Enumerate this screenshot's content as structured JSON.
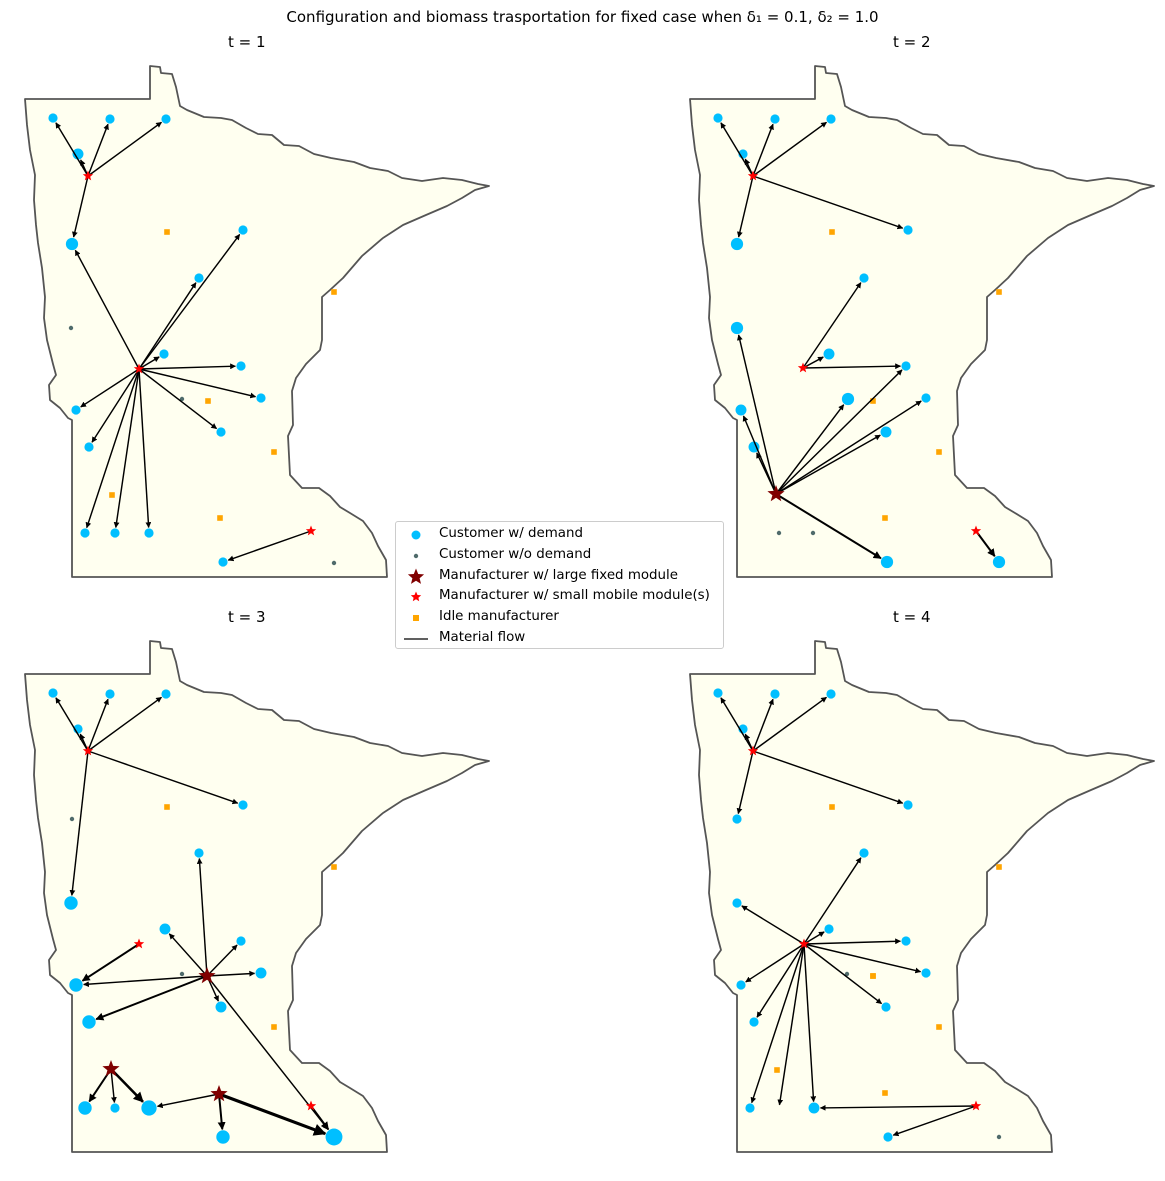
{
  "figure": {
    "title": "Configuration and biomass trasportation for fixed case when δ₁ = 0.1, δ₂ = 1.0"
  },
  "legend": {
    "items": [
      {
        "label": "Customer w/ demand",
        "symbol": "circle",
        "color": "#00bfff"
      },
      {
        "label": "Customer w/o demand",
        "symbol": "small-dot",
        "color": "#4f6b6b"
      },
      {
        "label": "Manufacturer w/ large fixed module",
        "symbol": "large-star",
        "color": "#800000"
      },
      {
        "label": "Manufacturer w/ small mobile module(s)",
        "symbol": "small-star",
        "color": "#ff0000"
      },
      {
        "label": "Idle manufacturer",
        "symbol": "square",
        "color": "#ffa500"
      },
      {
        "label": "Material flow",
        "symbol": "line",
        "color": "#000000"
      }
    ]
  },
  "colors": {
    "state_fill": "#fffff0",
    "state_border": "#555555",
    "customer": "#00bfff",
    "customer_none": "#4f6b6b",
    "large_module": "#800000",
    "small_module": "#ff0000",
    "idle": "#ffa500",
    "flow": "#000000"
  },
  "chart_data": [
    {
      "type": "network-map",
      "title": "t = 1",
      "nodes": [
        {
          "id": "C1",
          "kind": "customer",
          "demand": 1
        },
        {
          "id": "C2",
          "kind": "customer",
          "demand": 1
        },
        {
          "id": "C3",
          "kind": "customer",
          "demand": 1
        },
        {
          "id": "C4",
          "kind": "customer",
          "demand": 2
        },
        {
          "id": "C5",
          "kind": "customer",
          "demand": 3
        },
        {
          "id": "C6",
          "kind": "customer",
          "demand": 1
        },
        {
          "id": "C7",
          "kind": "customer",
          "demand": 1
        },
        {
          "id": "C8",
          "kind": "customer",
          "demand": 0
        },
        {
          "id": "C9",
          "kind": "customer",
          "demand": 1
        },
        {
          "id": "C10",
          "kind": "customer",
          "demand": 1
        },
        {
          "id": "C11",
          "kind": "customer",
          "demand": 0
        },
        {
          "id": "C12",
          "kind": "customer",
          "demand": 1
        },
        {
          "id": "C13",
          "kind": "customer",
          "demand": 1
        },
        {
          "id": "C14",
          "kind": "customer",
          "demand": 1
        },
        {
          "id": "C15",
          "kind": "customer",
          "demand": 1
        },
        {
          "id": "C16",
          "kind": "customer",
          "demand": 1
        },
        {
          "id": "C17",
          "kind": "customer",
          "demand": 1
        },
        {
          "id": "C18",
          "kind": "customer",
          "demand": 1
        },
        {
          "id": "C19",
          "kind": "customer",
          "demand": 1
        },
        {
          "id": "C20",
          "kind": "customer",
          "demand": 0
        },
        {
          "id": "M1",
          "kind": "small"
        },
        {
          "id": "M2",
          "kind": "small"
        },
        {
          "id": "M3",
          "kind": "small"
        },
        {
          "id": "I1",
          "kind": "idle"
        },
        {
          "id": "I2",
          "kind": "idle"
        },
        {
          "id": "I3",
          "kind": "idle"
        },
        {
          "id": "I4",
          "kind": "idle"
        },
        {
          "id": "I5",
          "kind": "idle"
        },
        {
          "id": "I6",
          "kind": "idle"
        }
      ],
      "flows": [
        {
          "from": "M1",
          "to": "C1",
          "amount": 1
        },
        {
          "from": "M1",
          "to": "C2",
          "amount": 1
        },
        {
          "from": "M1",
          "to": "C3",
          "amount": 1
        },
        {
          "from": "M1",
          "to": "C4",
          "amount": 1
        },
        {
          "from": "M1",
          "to": "C5",
          "amount": 1
        },
        {
          "from": "M2",
          "to": "C5",
          "amount": 1
        },
        {
          "from": "M2",
          "to": "C6",
          "amount": 1
        },
        {
          "from": "M2",
          "to": "C7",
          "amount": 1
        },
        {
          "from": "M2",
          "to": "C9",
          "amount": 1
        },
        {
          "from": "M2",
          "to": "C10",
          "amount": 1
        },
        {
          "from": "M2",
          "to": "C12",
          "amount": 1
        },
        {
          "from": "M2",
          "to": "C13",
          "amount": 1
        },
        {
          "from": "M2",
          "to": "C14",
          "amount": 1
        },
        {
          "from": "M2",
          "to": "C15",
          "amount": 1
        },
        {
          "from": "M2",
          "to": "C16",
          "amount": 1
        },
        {
          "from": "M2",
          "to": "C17",
          "amount": 1
        },
        {
          "from": "M2",
          "to": "C18",
          "amount": 1
        },
        {
          "from": "M3",
          "to": "C19",
          "amount": 1
        }
      ]
    },
    {
      "type": "network-map",
      "title": "t = 2",
      "nodes": [
        {
          "id": "C1",
          "kind": "customer",
          "demand": 1
        },
        {
          "id": "C2",
          "kind": "customer",
          "demand": 1
        },
        {
          "id": "C3",
          "kind": "customer",
          "demand": 1
        },
        {
          "id": "C4",
          "kind": "customer",
          "demand": 1
        },
        {
          "id": "C5",
          "kind": "customer",
          "demand": 3
        },
        {
          "id": "C6",
          "kind": "customer",
          "demand": 1
        },
        {
          "id": "C7",
          "kind": "customer",
          "demand": 1
        },
        {
          "id": "C8",
          "kind": "customer",
          "demand": 3
        },
        {
          "id": "C9",
          "kind": "customer",
          "demand": 2
        },
        {
          "id": "C10",
          "kind": "customer",
          "demand": 1
        },
        {
          "id": "C11",
          "kind": "customer",
          "demand": 2
        },
        {
          "id": "C12",
          "kind": "customer",
          "demand": 1
        },
        {
          "id": "C13",
          "kind": "customer",
          "demand": 3
        },
        {
          "id": "C14",
          "kind": "customer",
          "demand": 2
        },
        {
          "id": "C15",
          "kind": "customer",
          "demand": 2
        },
        {
          "id": "C16",
          "kind": "customer",
          "demand": 0
        },
        {
          "id": "C17",
          "kind": "customer",
          "demand": 0
        },
        {
          "id": "C18",
          "kind": "customer",
          "demand": 3
        },
        {
          "id": "C19",
          "kind": "customer",
          "demand": 3
        },
        {
          "id": "M1",
          "kind": "small"
        },
        {
          "id": "M2",
          "kind": "small"
        },
        {
          "id": "M3",
          "kind": "large"
        },
        {
          "id": "M4",
          "kind": "small"
        },
        {
          "id": "I1",
          "kind": "idle"
        },
        {
          "id": "I2",
          "kind": "idle"
        },
        {
          "id": "I3",
          "kind": "idle"
        },
        {
          "id": "I4",
          "kind": "idle"
        },
        {
          "id": "I5",
          "kind": "idle"
        }
      ],
      "flows": [
        {
          "from": "M1",
          "to": "C1",
          "amount": 1
        },
        {
          "from": "M1",
          "to": "C2",
          "amount": 1
        },
        {
          "from": "M1",
          "to": "C3",
          "amount": 1
        },
        {
          "from": "M1",
          "to": "C4",
          "amount": 1
        },
        {
          "from": "M1",
          "to": "C5",
          "amount": 1
        },
        {
          "from": "M1",
          "to": "C6",
          "amount": 1
        },
        {
          "from": "M2",
          "to": "C7",
          "amount": 1
        },
        {
          "from": "M2",
          "to": "C9",
          "amount": 1
        },
        {
          "from": "M2",
          "to": "C10",
          "amount": 1
        },
        {
          "from": "M3",
          "to": "C8",
          "amount": 1
        },
        {
          "from": "M3",
          "to": "C11",
          "amount": 1
        },
        {
          "from": "M3",
          "to": "C12",
          "amount": 1
        },
        {
          "from": "M3",
          "to": "C13",
          "amount": 1
        },
        {
          "from": "M3",
          "to": "C14",
          "amount": 1
        },
        {
          "from": "M3",
          "to": "C15",
          "amount": 1
        },
        {
          "from": "M3",
          "to": "C18",
          "amount": 2
        },
        {
          "from": "M3",
          "to": "C10",
          "amount": 1
        },
        {
          "from": "M4",
          "to": "C19",
          "amount": 2
        }
      ]
    },
    {
      "type": "network-map",
      "title": "t = 3",
      "nodes": [
        {
          "id": "C1",
          "kind": "customer",
          "demand": 1
        },
        {
          "id": "C2",
          "kind": "customer",
          "demand": 1
        },
        {
          "id": "C3",
          "kind": "customer",
          "demand": 1
        },
        {
          "id": "C4",
          "kind": "customer",
          "demand": 1
        },
        {
          "id": "C5",
          "kind": "customer",
          "demand": 1
        },
        {
          "id": "C6",
          "kind": "customer",
          "demand": 0
        },
        {
          "id": "C7",
          "kind": "customer",
          "demand": 1
        },
        {
          "id": "C8",
          "kind": "customer",
          "demand": 4
        },
        {
          "id": "C9",
          "kind": "customer",
          "demand": 2
        },
        {
          "id": "C10",
          "kind": "customer",
          "demand": 1
        },
        {
          "id": "C11",
          "kind": "customer",
          "demand": 4
        },
        {
          "id": "C12",
          "kind": "customer",
          "demand": 0
        },
        {
          "id": "C13",
          "kind": "customer",
          "demand": 2
        },
        {
          "id": "C14",
          "kind": "customer",
          "demand": 2
        },
        {
          "id": "C15",
          "kind": "customer",
          "demand": 4
        },
        {
          "id": "C16",
          "kind": "customer",
          "demand": 4
        },
        {
          "id": "C17",
          "kind": "customer",
          "demand": 1
        },
        {
          "id": "C18",
          "kind": "customer",
          "demand": 6
        },
        {
          "id": "C19",
          "kind": "customer",
          "demand": 4
        },
        {
          "id": "C20",
          "kind": "customer",
          "demand": 8
        },
        {
          "id": "M1",
          "kind": "small"
        },
        {
          "id": "M2",
          "kind": "small"
        },
        {
          "id": "M3",
          "kind": "large"
        },
        {
          "id": "M4",
          "kind": "large"
        },
        {
          "id": "M5",
          "kind": "large"
        },
        {
          "id": "M6",
          "kind": "small"
        },
        {
          "id": "I1",
          "kind": "idle"
        },
        {
          "id": "I2",
          "kind": "idle"
        },
        {
          "id": "I3",
          "kind": "idle"
        }
      ],
      "flows": [
        {
          "from": "M1",
          "to": "C1",
          "amount": 1
        },
        {
          "from": "M1",
          "to": "C2",
          "amount": 1
        },
        {
          "from": "M1",
          "to": "C3",
          "amount": 1
        },
        {
          "from": "M1",
          "to": "C4",
          "amount": 1
        },
        {
          "from": "M1",
          "to": "C5",
          "amount": 1
        },
        {
          "from": "M1",
          "to": "C8",
          "amount": 1
        },
        {
          "from": "M2",
          "to": "C11",
          "amount": 2
        },
        {
          "from": "M3",
          "to": "C7",
          "amount": 1
        },
        {
          "from": "M3",
          "to": "C9",
          "amount": 1
        },
        {
          "from": "M3",
          "to": "C10",
          "amount": 1
        },
        {
          "from": "M3",
          "to": "C11",
          "amount": 1
        },
        {
          "from": "M3",
          "to": "C13",
          "amount": 1
        },
        {
          "from": "M3",
          "to": "C14",
          "amount": 1
        },
        {
          "from": "M3",
          "to": "C15",
          "amount": 2
        },
        {
          "from": "M3",
          "to": "C20",
          "amount": 1
        },
        {
          "from": "M4",
          "to": "C16",
          "amount": 2
        },
        {
          "from": "M4",
          "to": "C17",
          "amount": 1
        },
        {
          "from": "M4",
          "to": "C18",
          "amount": 3
        },
        {
          "from": "M5",
          "to": "C18",
          "amount": 1
        },
        {
          "from": "M5",
          "to": "C19",
          "amount": 2
        },
        {
          "from": "M5",
          "to": "C20",
          "amount": 4
        },
        {
          "from": "M6",
          "to": "C20",
          "amount": 2
        }
      ]
    },
    {
      "type": "network-map",
      "title": "t = 4",
      "nodes": [
        {
          "id": "C1",
          "kind": "customer",
          "demand": 1
        },
        {
          "id": "C2",
          "kind": "customer",
          "demand": 1
        },
        {
          "id": "C3",
          "kind": "customer",
          "demand": 1
        },
        {
          "id": "C4",
          "kind": "customer",
          "demand": 1
        },
        {
          "id": "C5",
          "kind": "customer",
          "demand": 1
        },
        {
          "id": "C6",
          "kind": "customer",
          "demand": 1
        },
        {
          "id": "C7",
          "kind": "customer",
          "demand": 1
        },
        {
          "id": "C8",
          "kind": "customer",
          "demand": 1
        },
        {
          "id": "C9",
          "kind": "customer",
          "demand": 1
        },
        {
          "id": "C10",
          "kind": "customer",
          "demand": 1
        },
        {
          "id": "C11",
          "kind": "customer",
          "demand": 0
        },
        {
          "id": "C12",
          "kind": "customer",
          "demand": 1
        },
        {
          "id": "C13",
          "kind": "customer",
          "demand": 1
        },
        {
          "id": "C14",
          "kind": "customer",
          "demand": 1
        },
        {
          "id": "C15",
          "kind": "customer",
          "demand": 1
        },
        {
          "id": "C16",
          "kind": "customer",
          "demand": 1
        },
        {
          "id": "C17",
          "kind": "customer",
          "demand": 2
        },
        {
          "id": "C18",
          "kind": "customer",
          "demand": 1
        },
        {
          "id": "C19",
          "kind": "customer",
          "demand": 0
        },
        {
          "id": "M1",
          "kind": "small"
        },
        {
          "id": "M2",
          "kind": "small"
        },
        {
          "id": "M3",
          "kind": "small"
        },
        {
          "id": "I1",
          "kind": "idle"
        },
        {
          "id": "I2",
          "kind": "idle"
        },
        {
          "id": "I3",
          "kind": "idle"
        },
        {
          "id": "I4",
          "kind": "idle"
        },
        {
          "id": "I5",
          "kind": "idle"
        },
        {
          "id": "I6",
          "kind": "idle"
        },
        {
          "id": "I7",
          "kind": "idle"
        }
      ],
      "flows": [
        {
          "from": "M1",
          "to": "C1",
          "amount": 1
        },
        {
          "from": "M1",
          "to": "C2",
          "amount": 1
        },
        {
          "from": "M1",
          "to": "C3",
          "amount": 1
        },
        {
          "from": "M1",
          "to": "C4",
          "amount": 1
        },
        {
          "from": "M1",
          "to": "C5",
          "amount": 1
        },
        {
          "from": "M1",
          "to": "C6",
          "amount": 1
        },
        {
          "from": "M2",
          "to": "C7",
          "amount": 1
        },
        {
          "from": "M2",
          "to": "C8",
          "amount": 1
        },
        {
          "from": "M2",
          "to": "C9",
          "amount": 1
        },
        {
          "from": "M2",
          "to": "C10",
          "amount": 1
        },
        {
          "from": "M2",
          "to": "C12",
          "amount": 1
        },
        {
          "from": "M2",
          "to": "C13",
          "amount": 1
        },
        {
          "from": "M2",
          "to": "C14",
          "amount": 1
        },
        {
          "from": "M2",
          "to": "C15",
          "amount": 1
        },
        {
          "from": "M2",
          "to": "C16",
          "amount": 1
        },
        {
          "from": "M2",
          "to": "C17",
          "amount": 1
        },
        {
          "from": "M2",
          "to": "C20",
          "amount": 1
        },
        {
          "from": "M3",
          "to": "C17",
          "amount": 1
        },
        {
          "from": "M3",
          "to": "C18",
          "amount": 1
        }
      ]
    }
  ]
}
